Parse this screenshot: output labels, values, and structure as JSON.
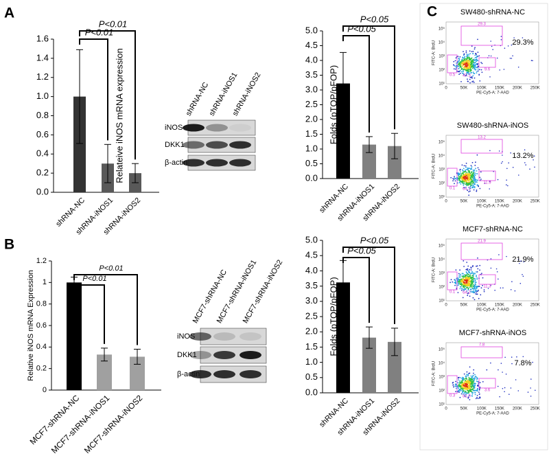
{
  "panel_labels": [
    "A",
    "B",
    "C"
  ],
  "chart_data": [
    {
      "type": "bar",
      "y_label": "Relateive iNOS mRNA expression",
      "categories": [
        "shRNA-NC",
        "shRNA-iNOS1",
        "shRNA-iNOS2"
      ],
      "values": [
        1.0,
        0.3,
        0.2
      ],
      "errors": [
        0.49,
        0.2,
        0.1
      ],
      "colors": [
        "#333333",
        "#595959",
        "#595959"
      ],
      "ylim": [
        0,
        1.6
      ],
      "yticks": [
        {
          "value": 0,
          "label": "0.0"
        },
        0.2,
        0.4,
        0.6,
        0.8,
        {
          "value": 1,
          "label": "1.0"
        },
        1.2,
        1.4,
        1.6
      ],
      "annotations": [
        "P<0.01",
        "P<0.01"
      ]
    },
    {
      "type": "bar",
      "y_label": "Folds (pTOP/pFOP)",
      "categories": [
        "shRNA-NC",
        "shRNA-iNOS1",
        "shRNA-iNOS2"
      ],
      "values": [
        3.22,
        1.15,
        1.1
      ],
      "errors": [
        1.05,
        0.27,
        0.43
      ],
      "colors": [
        "#000000",
        "#808080",
        "#808080"
      ],
      "ylim": [
        0,
        5
      ],
      "yticks": [
        {
          "value": 0,
          "label": "0.0"
        },
        0.5,
        {
          "value": 1,
          "label": "1.0"
        },
        1.5,
        {
          "value": 2,
          "label": "2.0"
        },
        2.5,
        {
          "value": 3,
          "label": "3.0"
        },
        3.5,
        {
          "value": 4,
          "label": "4.0"
        },
        4.5,
        {
          "value": 5,
          "label": "5.0"
        }
      ],
      "annotations": [
        "P<0.05",
        "P<0.05"
      ]
    },
    {
      "type": "bar",
      "y_label": "Relative iNOS mRNA Expression",
      "categories": [
        "MCF7-shRNA-NC",
        "MCF7-shRNA-iNOS1",
        "MCF7-shRNA-iNOS2"
      ],
      "values": [
        1.0,
        0.33,
        0.31
      ],
      "errors": [
        0.05,
        0.06,
        0.07
      ],
      "colors": [
        "#000000",
        "#a0a0a0",
        "#a0a0a0"
      ],
      "ylim": [
        0,
        1.2
      ],
      "yticks": [
        0,
        0.2,
        0.4,
        0.6,
        0.8,
        1,
        1.2
      ],
      "annotations": [
        "P<0.01",
        "P<0.01"
      ]
    },
    {
      "type": "bar",
      "y_label": "Folds (pTOP/pFOP)",
      "categories": [
        "shRNA-NC",
        "shRNA-iNOS1",
        "shRNA-iNOS2"
      ],
      "values": [
        3.62,
        1.81,
        1.67
      ],
      "errors": [
        0.72,
        0.35,
        0.45
      ],
      "colors": [
        "#000000",
        "#808080",
        "#808080"
      ],
      "ylim": [
        0,
        5
      ],
      "yticks": [
        {
          "value": 0,
          "label": "0.0"
        },
        0.5,
        {
          "value": 1,
          "label": "1.0"
        },
        1.5,
        {
          "value": 2,
          "label": "2.0"
        },
        2.5,
        {
          "value": 3,
          "label": "3.0"
        },
        3.5,
        {
          "value": 4,
          "label": "4.0"
        },
        4.5,
        {
          "value": 5,
          "label": "5.0"
        }
      ],
      "annotations": [
        "P<0.05",
        "P<0.05"
      ]
    }
  ],
  "blots": [
    {
      "lanes": [
        "shRNA-NC",
        "shRNA-iNOS1",
        "shRNA-iNOS2"
      ],
      "rows": [
        "iNOS",
        "DKK1",
        "β-actin"
      ]
    },
    {
      "lanes": [
        "MCF7-shRNA-NC",
        "MCF7-shRNA-iNOS1",
        "MCF7-shRNA-iNOS2"
      ],
      "rows": [
        "iNOS",
        "DKK1",
        "β-actin"
      ]
    }
  ],
  "flow": {
    "x_label": "PE-Cy5-A: 7-AAD",
    "y_label": "FITC-A: BrdU",
    "xticks": [
      "0",
      "50K",
      "100K",
      "150K",
      "200K",
      "250K"
    ],
    "yticks": [
      "10¹",
      "10²",
      "10³",
      "10⁴",
      "10⁵"
    ],
    "panels": [
      {
        "title": "SW480-shRNA-NC",
        "percent": "29.3%",
        "gates": [
          "29.3",
          "0.5",
          "47.3",
          "9.6"
        ]
      },
      {
        "title": "SW480-shRNA-iNOS",
        "percent": "13.2%",
        "gates": [
          "13.2",
          "0.1",
          "64.3",
          "11.9"
        ]
      },
      {
        "title": "MCF7-shRNA-NC",
        "percent": "21.9%",
        "gates": [
          "21.9",
          "0.1",
          "64.2",
          "11.3"
        ]
      },
      {
        "title": "MCF7-shRNA-iNOS",
        "percent": "7.8%",
        "gates": [
          "7.8",
          "0.3",
          "81.9",
          "3.6"
        ]
      }
    ]
  }
}
